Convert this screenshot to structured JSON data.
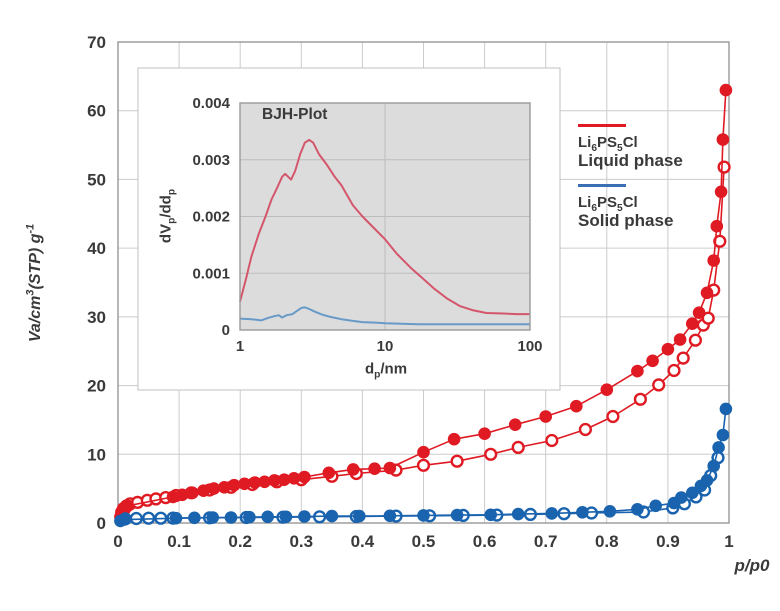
{
  "chart_data": [
    {
      "id": "main",
      "type": "scatter",
      "xlabel": "p/p0",
      "ylabel_parts": [
        [
          "t",
          "Va/cm"
        ],
        [
          "sup",
          "3"
        ],
        [
          "t",
          "(STP) g"
        ],
        [
          "sup",
          "-1"
        ]
      ],
      "xlim": [
        0,
        1
      ],
      "ylim": [
        0,
        70
      ],
      "grid": true,
      "legend_position": "right-upper",
      "x_ticks": [
        {
          "v": 0,
          "label": "0"
        },
        {
          "v": 0.1,
          "label": "0.1"
        },
        {
          "v": 0.2,
          "label": "0.2"
        },
        {
          "v": 0.3,
          "label": "0.3"
        },
        {
          "v": 0.4,
          "label": "0.4"
        },
        {
          "v": 0.5,
          "label": "0.5"
        },
        {
          "v": 0.6,
          "label": "0.6"
        },
        {
          "v": 0.7,
          "label": "0.7"
        },
        {
          "v": 0.8,
          "label": "0.8"
        },
        {
          "v": 0.9,
          "label": "0.9"
        },
        {
          "v": 1,
          "label": "1"
        }
      ],
      "y_ticks": [
        {
          "v": 0,
          "label": "0"
        },
        {
          "v": 10,
          "label": "10"
        },
        {
          "v": 20,
          "label": "20"
        },
        {
          "v": 30,
          "label": "30"
        },
        {
          "v": 40,
          "label": "40"
        },
        {
          "v": 50,
          "label": "50"
        },
        {
          "v": 60,
          "label": "60"
        },
        {
          "v": 70,
          "label": "70"
        }
      ],
      "series": [
        {
          "name": "liquid-phase-desorption",
          "label": "Li6PS5Cl Liquid phase (open markers)",
          "marker": "open",
          "color": "#e01a23",
          "points": [
            [
              0.006,
              1.6
            ],
            [
              0.009,
              2.1
            ],
            [
              0.014,
              2.5
            ],
            [
              0.02,
              2.8
            ],
            [
              0.032,
              3.0
            ],
            [
              0.048,
              3.3
            ],
            [
              0.062,
              3.5
            ],
            [
              0.078,
              3.7
            ],
            [
              0.095,
              4.0
            ],
            [
              0.12,
              4.4
            ],
            [
              0.15,
              4.8
            ],
            [
              0.185,
              5.2
            ],
            [
              0.22,
              5.6
            ],
            [
              0.26,
              6.0
            ],
            [
              0.3,
              6.3
            ],
            [
              0.35,
              6.8
            ],
            [
              0.39,
              7.2
            ],
            [
              0.455,
              7.7
            ],
            [
              0.5,
              8.4
            ],
            [
              0.555,
              9.0
            ],
            [
              0.61,
              10.0
            ],
            [
              0.655,
              11.0
            ],
            [
              0.71,
              12.0
            ],
            [
              0.765,
              13.6
            ],
            [
              0.81,
              15.5
            ],
            [
              0.855,
              18.0
            ],
            [
              0.885,
              20.1
            ],
            [
              0.91,
              22.2
            ],
            [
              0.925,
              24.0
            ],
            [
              0.945,
              26.6
            ],
            [
              0.958,
              28.8
            ],
            [
              0.966,
              29.8
            ],
            [
              0.975,
              33.9
            ],
            [
              0.985,
              41.0
            ],
            [
              0.992,
              51.8
            ]
          ]
        },
        {
          "name": "liquid-phase-adsorption",
          "label": "Li6PS5Cl Liquid phase (filled markers)",
          "marker": "filled",
          "color": "#e01a23",
          "points": [
            [
              0.004,
              0.9
            ],
            [
              0.007,
              1.5
            ],
            [
              0.011,
              2.0
            ],
            [
              0.016,
              2.5
            ],
            [
              0.09,
              3.8
            ],
            [
              0.105,
              4.1
            ],
            [
              0.122,
              4.4
            ],
            [
              0.14,
              4.7
            ],
            [
              0.157,
              5.0
            ],
            [
              0.174,
              5.2
            ],
            [
              0.19,
              5.5
            ],
            [
              0.207,
              5.7
            ],
            [
              0.224,
              5.9
            ],
            [
              0.24,
              6.0
            ],
            [
              0.256,
              6.2
            ],
            [
              0.272,
              6.3
            ],
            [
              0.288,
              6.5
            ],
            [
              0.305,
              6.7
            ],
            [
              0.345,
              7.3
            ],
            [
              0.385,
              7.8
            ],
            [
              0.42,
              7.9
            ],
            [
              0.445,
              8.0
            ],
            [
              0.5,
              10.3
            ],
            [
              0.55,
              12.2
            ],
            [
              0.6,
              13.0
            ],
            [
              0.65,
              14.3
            ],
            [
              0.7,
              15.5
            ],
            [
              0.75,
              17.0
            ],
            [
              0.8,
              19.4
            ],
            [
              0.85,
              22.1
            ],
            [
              0.875,
              23.6
            ],
            [
              0.9,
              25.3
            ],
            [
              0.92,
              26.7
            ],
            [
              0.94,
              29.0
            ],
            [
              0.951,
              30.6
            ],
            [
              0.964,
              33.5
            ],
            [
              0.975,
              38.2
            ],
            [
              0.98,
              43.2
            ],
            [
              0.987,
              48.2
            ],
            [
              0.99,
              55.8
            ],
            [
              0.995,
              63.0
            ]
          ]
        },
        {
          "name": "solid-phase-desorption",
          "label": "Li6PS5Cl Solid phase (open markers)",
          "marker": "open",
          "color": "#1a63ae",
          "points": [
            [
              0.012,
              0.6
            ],
            [
              0.03,
              0.65
            ],
            [
              0.05,
              0.7
            ],
            [
              0.07,
              0.7
            ],
            [
              0.09,
              0.72
            ],
            [
              0.15,
              0.75
            ],
            [
              0.21,
              0.8
            ],
            [
              0.27,
              0.85
            ],
            [
              0.33,
              0.9
            ],
            [
              0.39,
              0.95
            ],
            [
              0.455,
              1.0
            ],
            [
              0.51,
              1.05
            ],
            [
              0.565,
              1.1
            ],
            [
              0.62,
              1.15
            ],
            [
              0.675,
              1.25
            ],
            [
              0.73,
              1.35
            ],
            [
              0.775,
              1.45
            ],
            [
              0.86,
              1.6
            ],
            [
              0.908,
              2.2
            ],
            [
              0.927,
              2.8
            ],
            [
              0.946,
              3.8
            ],
            [
              0.96,
              4.8
            ],
            [
              0.97,
              6.9
            ],
            [
              0.982,
              9.5
            ]
          ]
        },
        {
          "name": "solid-phase-adsorption",
          "label": "Li6PS5Cl Solid phase (filled markers)",
          "marker": "filled",
          "color": "#1a63ae",
          "points": [
            [
              0.004,
              0.3
            ],
            [
              0.01,
              0.5
            ],
            [
              0.095,
              0.7
            ],
            [
              0.125,
              0.75
            ],
            [
              0.155,
              0.8
            ],
            [
              0.185,
              0.8
            ],
            [
              0.215,
              0.85
            ],
            [
              0.245,
              0.9
            ],
            [
              0.275,
              0.9
            ],
            [
              0.305,
              0.95
            ],
            [
              0.35,
              1.0
            ],
            [
              0.395,
              1.0
            ],
            [
              0.445,
              1.05
            ],
            [
              0.5,
              1.1
            ],
            [
              0.555,
              1.15
            ],
            [
              0.61,
              1.2
            ],
            [
              0.655,
              1.3
            ],
            [
              0.71,
              1.4
            ],
            [
              0.76,
              1.55
            ],
            [
              0.805,
              1.7
            ],
            [
              0.85,
              2.0
            ],
            [
              0.88,
              2.5
            ],
            [
              0.91,
              2.9
            ],
            [
              0.922,
              3.7
            ],
            [
              0.94,
              4.4
            ],
            [
              0.954,
              5.4
            ],
            [
              0.964,
              6.2
            ],
            [
              0.975,
              8.3
            ],
            [
              0.983,
              11.0
            ],
            [
              0.99,
              12.8
            ],
            [
              0.995,
              16.6
            ]
          ]
        }
      ]
    },
    {
      "id": "inset",
      "type": "line",
      "title": "BJH-Plot",
      "xlabel_parts": [
        [
          "t",
          "d"
        ],
        [
          "sub",
          "p"
        ],
        [
          "t",
          "/nm"
        ]
      ],
      "ylabel_parts": [
        [
          "t",
          "dV"
        ],
        [
          "sub",
          "p"
        ],
        [
          "t",
          "/dd"
        ],
        [
          "sub",
          "p"
        ]
      ],
      "x_scale": "log",
      "xlim": [
        1,
        100
      ],
      "ylim": [
        0,
        0.004
      ],
      "plot_bg": "#dcdcdd",
      "grid": true,
      "x_ticks": [
        {
          "v": 1,
          "label": "1"
        },
        {
          "v": 10,
          "label": "10"
        },
        {
          "v": 100,
          "label": "100"
        }
      ],
      "y_ticks": [
        {
          "v": 0,
          "label": "0"
        },
        {
          "v": 0.001,
          "label": "0.001"
        },
        {
          "v": 0.002,
          "label": "0.002"
        },
        {
          "v": 0.003,
          "label": "0.003"
        },
        {
          "v": 0.004,
          "label": "0.004"
        }
      ],
      "series": [
        {
          "name": "liquid-phase-bjh",
          "label": "Li6PS5Cl Liquid phase",
          "color": "#d4566b",
          "points": [
            [
              1,
              0.0005
            ],
            [
              1.1,
              0.0009
            ],
            [
              1.2,
              0.0013
            ],
            [
              1.35,
              0.0017
            ],
            [
              1.5,
              0.002
            ],
            [
              1.65,
              0.0023
            ],
            [
              1.8,
              0.0025
            ],
            [
              1.95,
              0.0027
            ],
            [
              2.05,
              0.00275
            ],
            [
              2.15,
              0.0027
            ],
            [
              2.25,
              0.00265
            ],
            [
              2.4,
              0.0028
            ],
            [
              2.6,
              0.0031
            ],
            [
              2.8,
              0.0033
            ],
            [
              3.0,
              0.00335
            ],
            [
              3.2,
              0.0033
            ],
            [
              3.5,
              0.0031
            ],
            [
              4,
              0.0029
            ],
            [
              4.5,
              0.0027
            ],
            [
              5,
              0.00255
            ],
            [
              6,
              0.0022
            ],
            [
              7,
              0.002
            ],
            [
              8,
              0.00185
            ],
            [
              10,
              0.0016
            ],
            [
              12,
              0.00135
            ],
            [
              15,
              0.0011
            ],
            [
              18,
              0.00092
            ],
            [
              22,
              0.00072
            ],
            [
              27,
              0.00055
            ],
            [
              33,
              0.00042
            ],
            [
              40,
              0.00035
            ],
            [
              50,
              0.0003
            ],
            [
              65,
              0.00029
            ],
            [
              80,
              0.00028
            ],
            [
              100,
              0.00028
            ]
          ]
        },
        {
          "name": "solid-phase-bjh",
          "label": "Li6PS5Cl Solid phase",
          "color": "#689ac8",
          "points": [
            [
              1,
              0.0002
            ],
            [
              1.2,
              0.00019
            ],
            [
              1.4,
              0.00017
            ],
            [
              1.55,
              0.00021
            ],
            [
              1.7,
              0.00024
            ],
            [
              1.85,
              0.00026
            ],
            [
              1.95,
              0.00022
            ],
            [
              2.1,
              0.00026
            ],
            [
              2.3,
              0.00028
            ],
            [
              2.45,
              0.00033
            ],
            [
              2.65,
              0.00039
            ],
            [
              2.8,
              0.0004
            ],
            [
              3.0,
              0.00037
            ],
            [
              3.3,
              0.00032
            ],
            [
              3.7,
              0.00027
            ],
            [
              4.2,
              0.00023
            ],
            [
              5,
              0.00019
            ],
            [
              6,
              0.00016
            ],
            [
              7,
              0.00014
            ],
            [
              8.5,
              0.00013
            ],
            [
              10,
              0.00012
            ],
            [
              13,
              0.00011
            ],
            [
              17,
              0.0001
            ],
            [
              25,
              0.0001
            ],
            [
              40,
              0.0001
            ],
            [
              60,
              0.0001
            ],
            [
              100,
              0.0001
            ]
          ]
        }
      ]
    }
  ],
  "legend": {
    "items": [
      {
        "formula_parts": [
          [
            "t",
            "Li"
          ],
          [
            "sub",
            "6"
          ],
          [
            "t",
            "PS"
          ],
          [
            "sub",
            "5"
          ],
          [
            "t",
            "Cl"
          ]
        ],
        "phase": "Liquid phase",
        "color": "#e01a23"
      },
      {
        "formula_parts": [
          [
            "t",
            "Li"
          ],
          [
            "sub",
            "6"
          ],
          [
            "t",
            "PS"
          ],
          [
            "sub",
            "5"
          ],
          [
            "t",
            "Cl"
          ]
        ],
        "phase": "Solid phase",
        "color": "#3a6fb5"
      }
    ]
  },
  "colors": {
    "text": "#3a3a3a",
    "grid_main": "#cccccc",
    "frame_main": "#909090",
    "inset_card_border": "#c2c2c2",
    "inset_plot_bg": "#dcdcdd",
    "inset_grid": "#bdbdbd",
    "inset_frame": "#9a9a9a",
    "background": "#ffffff"
  }
}
